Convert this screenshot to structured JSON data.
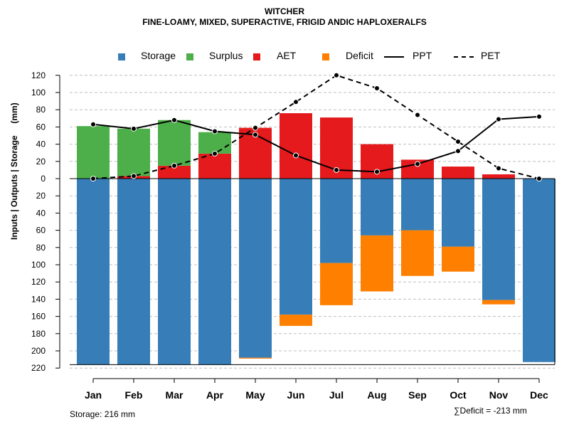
{
  "chart_data": {
    "type": "bar",
    "title": "WITCHER",
    "subtitle": "FINE-LOAMY, MIXED, SUPERACTIVE, FRIGID ANDIC HAPLOXERALFS",
    "ylabel": "Inputs | Outputs | Storage     (mm)",
    "ylim": [
      -220,
      120
    ],
    "y_ticks": [
      120,
      100,
      80,
      60,
      40,
      20,
      0,
      -20,
      -40,
      -60,
      -80,
      -100,
      -120,
      -140,
      -160,
      -180,
      -200,
      -220
    ],
    "y_tick_labels": [
      "120",
      "100",
      "80",
      "60",
      "40",
      "20",
      "0",
      "20",
      "40",
      "60",
      "80",
      "100",
      "120",
      "140",
      "160",
      "180",
      "200",
      "220"
    ],
    "grid": true,
    "legend_position": "top",
    "categories": [
      "Jan",
      "Feb",
      "Mar",
      "Apr",
      "May",
      "Jun",
      "Jul",
      "Aug",
      "Sep",
      "Oct",
      "Nov",
      "Dec"
    ],
    "series": [
      {
        "name": "Storage",
        "kind": "bar",
        "color": "#377EB8",
        "values": [
          -216,
          -216,
          -216,
          -216,
          -208,
          -158,
          -98,
          -66,
          -60,
          -79,
          -141,
          -213
        ]
      },
      {
        "name": "Surplus",
        "kind": "bar",
        "color": "#4DAF4A",
        "values": [
          61,
          55,
          53,
          25,
          0,
          0,
          0,
          0,
          0,
          0,
          0,
          0
        ]
      },
      {
        "name": "AET",
        "kind": "bar",
        "color": "#E41A1C",
        "values": [
          0,
          3,
          15,
          29,
          59,
          76,
          71,
          40,
          22,
          14,
          5,
          0
        ]
      },
      {
        "name": "Deficit",
        "kind": "bar",
        "color": "#FF7F00",
        "values": [
          0,
          0,
          0,
          0,
          -1,
          -13,
          -49,
          -65,
          -53,
          -29,
          -5,
          0
        ]
      },
      {
        "name": "PPT",
        "kind": "line",
        "color": "#000000",
        "style": "solid",
        "values": [
          63,
          58,
          68,
          55,
          51,
          27,
          10,
          8,
          17,
          32,
          69,
          72
        ]
      },
      {
        "name": "PET",
        "kind": "line",
        "color": "#000000",
        "style": "dashed",
        "values": [
          0,
          3,
          15,
          29,
          59,
          89,
          120,
          105,
          74,
          43,
          12,
          0
        ]
      }
    ]
  },
  "legend": {
    "storage": "Storage",
    "surplus": "Surplus",
    "aet": "AET",
    "deficit": "Deficit",
    "ppt": "PPT",
    "pet": "PET"
  },
  "footer": {
    "storage_text": "Storage: 216 mm",
    "deficit_text": "∑Deficit = -213 mm"
  },
  "colors": {
    "storage": "#377EB8",
    "surplus": "#4DAF4A",
    "aet": "#E41A1C",
    "deficit": "#FF7F00",
    "grid": "#BEBEBE"
  }
}
